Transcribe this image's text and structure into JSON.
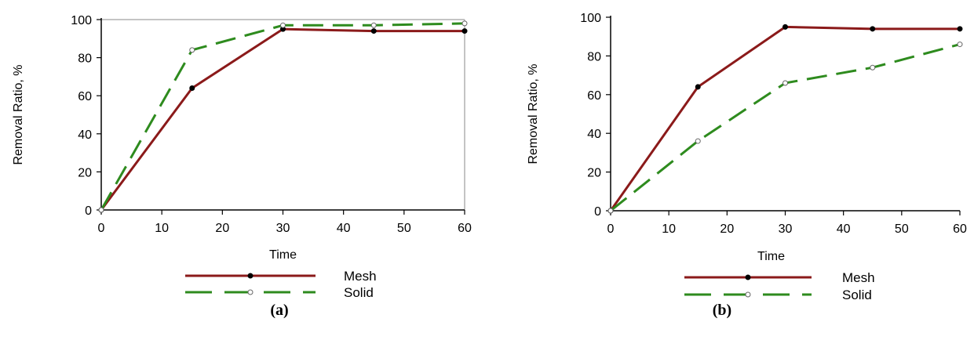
{
  "colors": {
    "mesh": "#8b1a1a",
    "solid": "#2e8b1e",
    "axis": "#000000",
    "frame": "#b0b0b0"
  },
  "chart_data": [
    {
      "type": "line",
      "panel_label": "(a)",
      "xlabel": "Time",
      "ylabel": "Removal Ratio, %",
      "xlim": [
        0,
        60
      ],
      "ylim": [
        0,
        100
      ],
      "xticks": [
        0,
        10,
        20,
        30,
        40,
        50,
        60
      ],
      "yticks": [
        0,
        20,
        40,
        60,
        80,
        100
      ],
      "x": [
        0,
        15,
        30,
        45,
        60
      ],
      "series": [
        {
          "name": "Mesh",
          "style": "solid",
          "marker": "filled-circle",
          "values": [
            0,
            64,
            95,
            94,
            94
          ]
        },
        {
          "name": "Solid",
          "style": "dashed",
          "marker": "open-circle",
          "values": [
            0,
            84,
            97,
            97,
            98
          ]
        }
      ],
      "frame": "full",
      "legend": "bottom"
    },
    {
      "type": "line",
      "panel_label": "(b)",
      "xlabel": "Time",
      "ylabel": "Removal Ratio, %",
      "xlim": [
        0,
        60
      ],
      "ylim": [
        0,
        100
      ],
      "xticks": [
        0,
        10,
        20,
        30,
        40,
        50,
        60
      ],
      "yticks": [
        0,
        20,
        40,
        60,
        80,
        100
      ],
      "x": [
        0,
        15,
        30,
        45,
        60
      ],
      "series": [
        {
          "name": "Mesh",
          "style": "solid",
          "marker": "filled-circle",
          "values": [
            0,
            64,
            95,
            94,
            94
          ]
        },
        {
          "name": "Solid",
          "style": "dashed",
          "marker": "open-circle",
          "values": [
            0,
            36,
            66,
            74,
            86
          ]
        }
      ],
      "frame": "none",
      "legend": "bottom"
    }
  ]
}
